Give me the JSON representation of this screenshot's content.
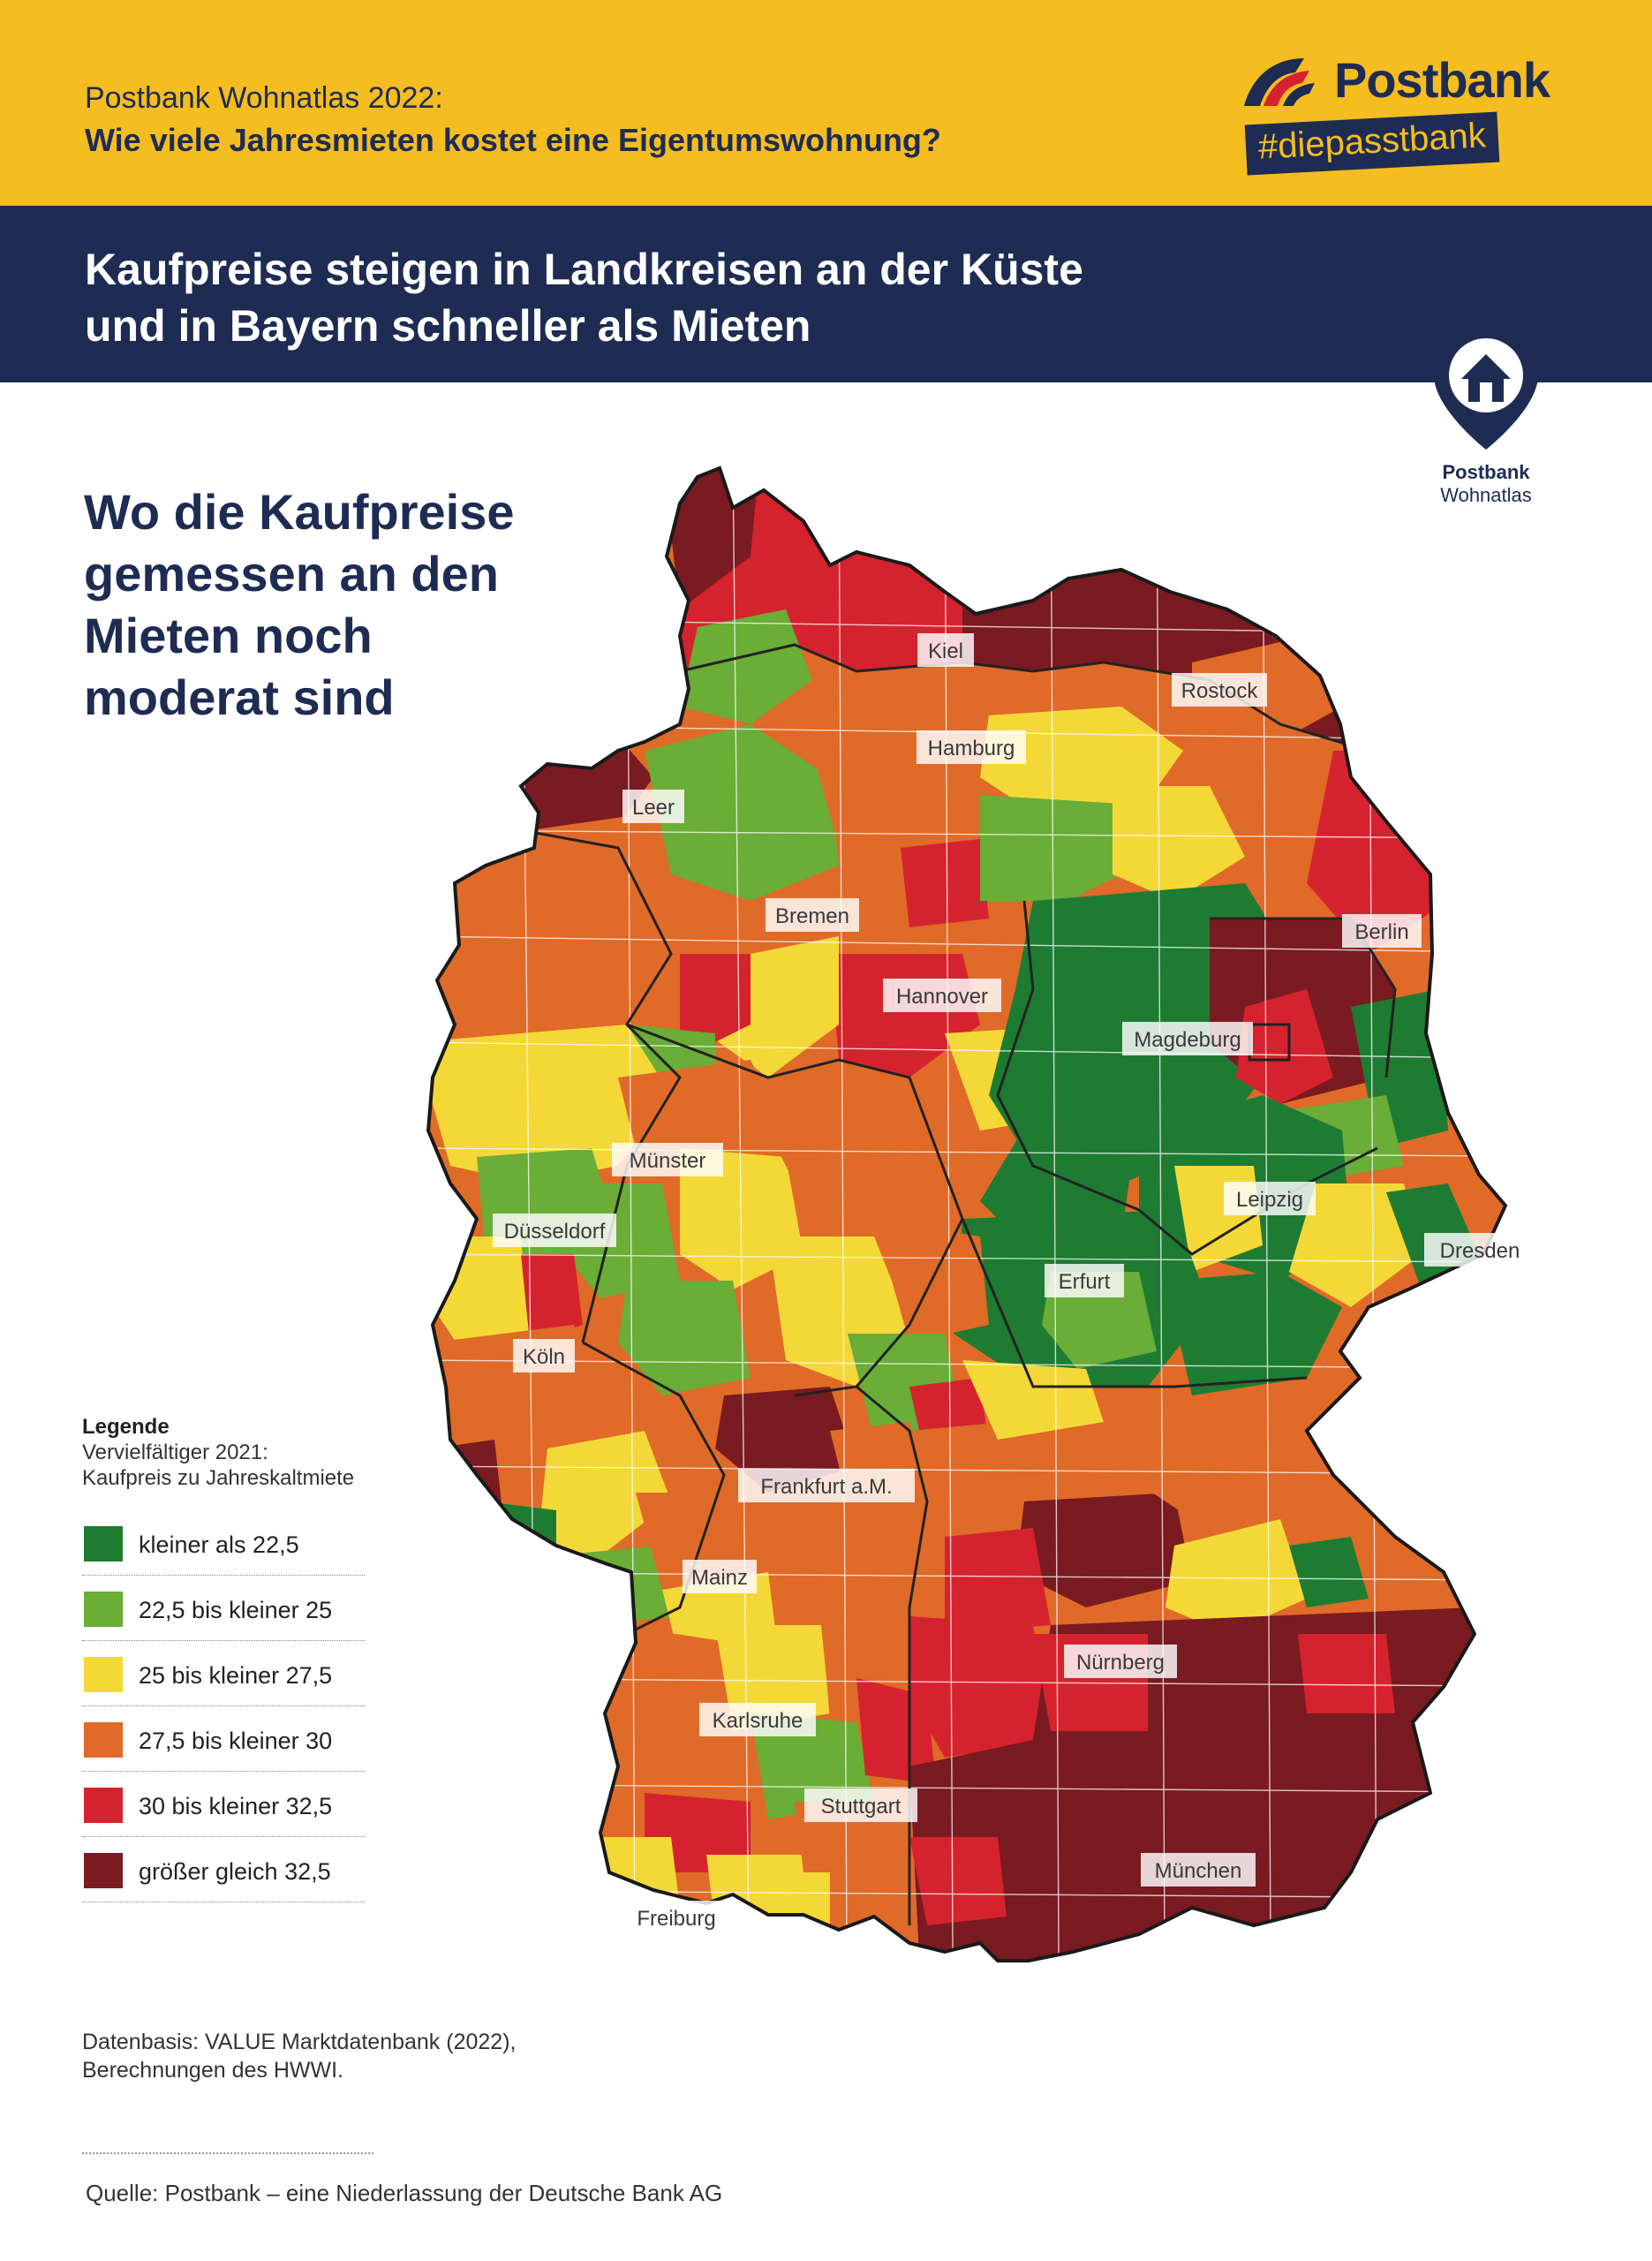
{
  "header": {
    "overline": "Postbank Wohnatlas 2022:",
    "question": "Wie viele Jahresmieten kostet eine Eigentumswohnung?",
    "brand": "Postbank",
    "hashtag": "#diepasstbank"
  },
  "banner": {
    "headline_line1": "Kaufpreise steigen in Landkreisen an der Küste",
    "headline_line2": "und in Bayern schneller als Mieten"
  },
  "badge": {
    "line1": "Postbank",
    "line2": "Wohnatlas",
    "icon": "location-pin-house-icon"
  },
  "subtitle": {
    "line1": "Wo die Kaufpreise",
    "line2": "gemessen an den",
    "line3": "Mieten noch",
    "line4": "moderat sind"
  },
  "legend": {
    "title": "Legende",
    "subtitle_line1": "Vervielfältiger 2021:",
    "subtitle_line2": "Kaufpreis zu Jahreskaltmiete",
    "items": [
      {
        "label": "kleiner als 22,5",
        "color": "#1e7b32"
      },
      {
        "label": "22,5 bis kleiner 25",
        "color": "#6aad37"
      },
      {
        "label": "25 bis kleiner 27,5",
        "color": "#f4d838"
      },
      {
        "label": "27,5 bis kleiner 30",
        "color": "#e06a28"
      },
      {
        "label": "30 bis kleiner 32,5",
        "color": "#d4232e"
      },
      {
        "label": "größer gleich 32,5",
        "color": "#7a1a21"
      }
    ]
  },
  "map": {
    "cities": [
      "Kiel",
      "Rostock",
      "Hamburg",
      "Leer",
      "Bremen",
      "Berlin",
      "Hannover",
      "Magdeburg",
      "Münster",
      "Leipzig",
      "Düsseldorf",
      "Dresden",
      "Erfurt",
      "Köln",
      "Frankfurt a.M.",
      "Mainz",
      "Nürnberg",
      "Karlsruhe",
      "Stuttgart",
      "München",
      "Freiburg"
    ]
  },
  "footer": {
    "basis_line1": "Datenbasis: VALUE Marktdatenbank (2022),",
    "basis_line2": "Berechnungen des HWWI.",
    "source": "Quelle: Postbank – eine Niederlassung der Deutsche Bank AG"
  }
}
